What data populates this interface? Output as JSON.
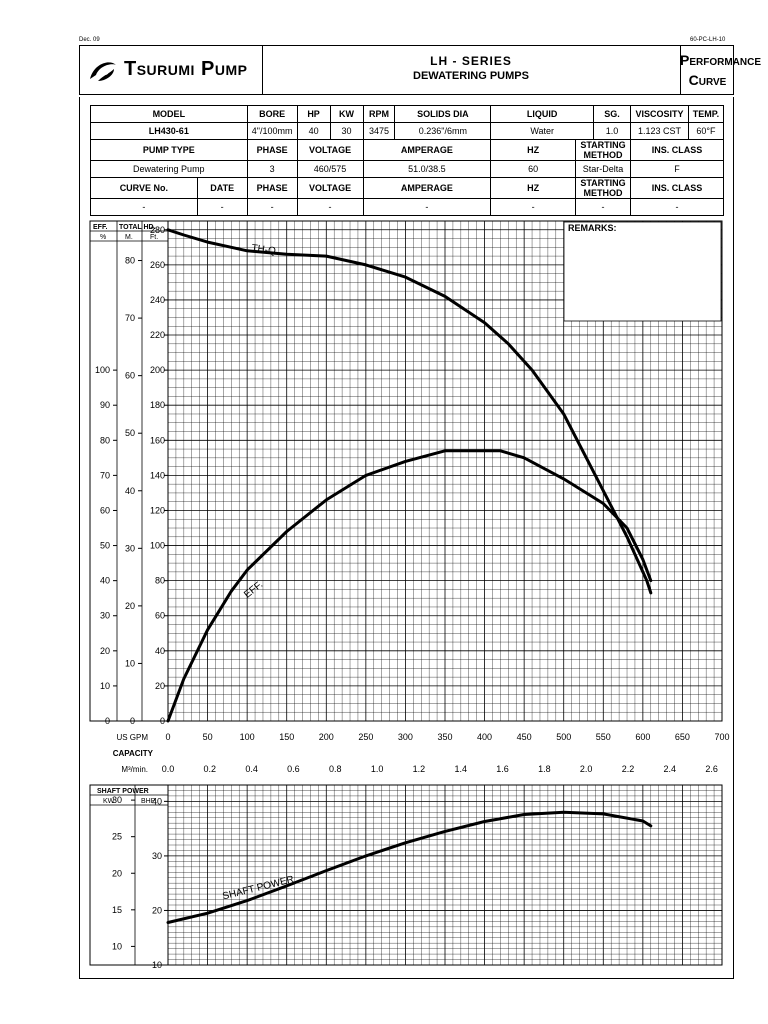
{
  "corner": {
    "left": "Dec. 09",
    "right": "60-PC-LH-10"
  },
  "header": {
    "brand": "Tsurumi Pump",
    "series": "LH - SERIES",
    "subtitle": "DEWATERING PUMPS",
    "doc_title_1": "Performance",
    "doc_title_2": "Curve"
  },
  "spec": {
    "row1": [
      "MODEL",
      "BORE",
      "HP",
      "KW",
      "RPM",
      "SOLIDS DIA",
      "LIQUID",
      "SG.",
      "VISCOSITY",
      "TEMP."
    ],
    "row2": [
      "LH430-61",
      "4\"/100mm",
      "40",
      "30",
      "3475",
      "0.236\"/6mm",
      "Water",
      "1.0",
      "1.123 CST",
      "60°F"
    ],
    "row3": [
      "PUMP TYPE",
      "PHASE",
      "VOLTAGE",
      "AMPERAGE",
      "HZ",
      "STARTING METHOD",
      "INS. CLASS"
    ],
    "row4": [
      "Dewatering Pump",
      "3",
      "460/575",
      "51.0/38.5",
      "60",
      "Star-Delta",
      "F"
    ],
    "row5": [
      "CURVE No.",
      "DATE",
      "PHASE",
      "VOLTAGE",
      "AMPERAGE",
      "HZ",
      "STARTING METHOD",
      "INS. CLASS"
    ],
    "row6": [
      "-",
      "-",
      "-",
      "-",
      "-",
      "-",
      "-",
      "-"
    ]
  },
  "chart_data": [
    {
      "type": "line",
      "title": "",
      "remarks_label": "REMARKS:",
      "axis_headers": {
        "eff": "EFF.",
        "eff_unit": "%",
        "head": "TOTAL HD.",
        "head_m": "M.",
        "head_ft": "Ft."
      },
      "xlabel": "CAPACITY",
      "x_gpm_label": "US GPM",
      "x_m3_label": "M³/min.",
      "x_gpm_ticks": [
        0,
        50,
        100,
        150,
        200,
        250,
        300,
        350,
        400,
        450,
        500,
        550,
        600,
        650,
        700
      ],
      "x_m3_ticks": [
        "0.0",
        "0.2",
        "0.4",
        "0.6",
        "0.8",
        "1.0",
        "1.2",
        "1.4",
        "1.6",
        "1.8",
        "2.0",
        "2.2",
        "2.4",
        "2.6"
      ],
      "xlim": [
        0,
        700
      ],
      "ft_ticks": [
        0,
        20,
        40,
        60,
        80,
        100,
        120,
        140,
        160,
        180,
        200,
        220,
        240,
        260,
        280
      ],
      "m_ticks": [
        0,
        10,
        20,
        30,
        40,
        50,
        60,
        70,
        80
      ],
      "eff_ticks": [
        0,
        10,
        20,
        30,
        40,
        50,
        60,
        70,
        80,
        90,
        100
      ],
      "ylim_ft": [
        0,
        285
      ],
      "series": [
        {
          "name": "TH-Q",
          "x": [
            0,
            20,
            50,
            80,
            100,
            150,
            200,
            250,
            300,
            350,
            400,
            430,
            460,
            500,
            540,
            580,
            605,
            610
          ],
          "y": [
            280,
            277,
            273,
            270,
            268,
            266,
            265,
            260,
            253,
            242,
            227,
            215,
            200,
            175,
            140,
            105,
            80,
            73
          ]
        },
        {
          "name": "EFF.",
          "x": [
            0,
            20,
            50,
            80,
            100,
            150,
            200,
            250,
            300,
            350,
            400,
            420,
            450,
            500,
            550,
            580,
            600,
            610
          ],
          "y": [
            0,
            12,
            26,
            37,
            43,
            54,
            63,
            70,
            74,
            77,
            77,
            77,
            75,
            69,
            62,
            55,
            46,
            40
          ]
        }
      ]
    },
    {
      "type": "line",
      "axis_headers": {
        "title": "SHAFT POWER",
        "kw": "KW",
        "bhp": "BHP"
      },
      "bhp_ticks": [
        10,
        20,
        30,
        40
      ],
      "kw_ticks": [
        10,
        15,
        20,
        25,
        30
      ],
      "ylim_bhp": [
        10,
        43
      ],
      "xlim": [
        0,
        700
      ],
      "series": [
        {
          "name": "SHAFT POWER",
          "x": [
            0,
            50,
            100,
            150,
            200,
            250,
            300,
            350,
            400,
            450,
            500,
            550,
            600,
            610
          ],
          "y": [
            17.8,
            19.5,
            21.8,
            24.5,
            27.3,
            30,
            32.4,
            34.5,
            36.3,
            37.6,
            38,
            37.7,
            36.4,
            35.5
          ]
        }
      ]
    }
  ]
}
